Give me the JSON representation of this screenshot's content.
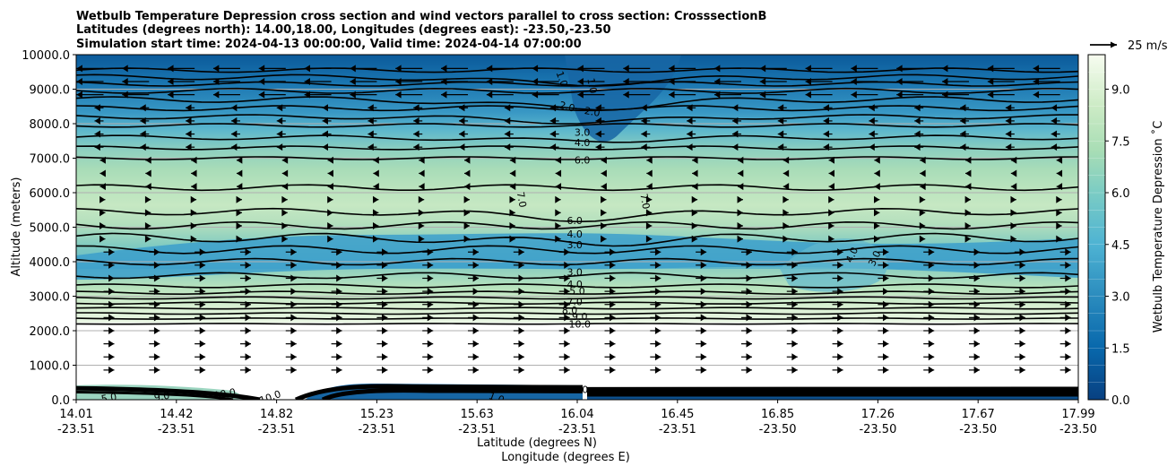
{
  "chart_data": {
    "type": "contour",
    "title_lines": [
      "Wetbulb Temperature Depression cross section and wind vectors parallel to cross section: CrosssectionB",
      "Latitudes (degrees north): 14.00,18.00, Longitudes (degrees east): -23.50,-23.50",
      "Simulation start time: 2024-04-13 00:00:00, Valid time: 2024-04-14 07:00:00"
    ],
    "ylabel": "Altitude (meters)",
    "xlabel_lat": "Latitude (degrees N)",
    "xlabel_lon": "Longitude (degrees E)",
    "ylim": [
      0,
      10000
    ],
    "yticks": [
      "0.0",
      "1000.0",
      "2000.0",
      "3000.0",
      "4000.0",
      "5000.0",
      "6000.0",
      "7000.0",
      "8000.0",
      "9000.0",
      "10000.0"
    ],
    "ytick_values": [
      0,
      1000,
      2000,
      3000,
      4000,
      5000,
      6000,
      7000,
      8000,
      9000,
      10000
    ],
    "xticks_lat": [
      "14.01",
      "14.42",
      "14.82",
      "15.23",
      "15.63",
      "16.04",
      "16.45",
      "16.85",
      "17.26",
      "17.67",
      "17.99"
    ],
    "xticks_lon": [
      "-23.51",
      "-23.51",
      "-23.51",
      "-23.51",
      "-23.51",
      "-23.51",
      "-23.51",
      "-23.50",
      "-23.50",
      "-23.50",
      "-23.50"
    ],
    "xlim_lat": [
      14.01,
      17.99
    ],
    "grid": "horizontal",
    "colorbar": {
      "label": "Wetbulb Temperature Depression ˚C",
      "ticks": [
        "0.0",
        "1.5",
        "3.0",
        "4.5",
        "6.0",
        "7.5",
        "9.0"
      ],
      "tick_values": [
        0,
        1.5,
        3,
        4.5,
        6,
        7.5,
        9
      ],
      "range": [
        0,
        10
      ],
      "colormap": "GnBu_r",
      "levels": 20
    },
    "quiver_key": {
      "label": "25 m/s",
      "speed": 25
    },
    "contour_labels": [
      {
        "text": "1.0",
        "lat": 15.94,
        "alt": 9300,
        "rot": 70
      },
      {
        "text": "1.0",
        "lat": 16.06,
        "alt": 9100,
        "rot": 80
      },
      {
        "text": "2.0",
        "lat": 15.96,
        "alt": 8500,
        "rot": 15
      },
      {
        "text": "2.0",
        "lat": 16.06,
        "alt": 8350,
        "rot": 10
      },
      {
        "text": "3.0",
        "lat": 16.02,
        "alt": 7750,
        "rot": 0
      },
      {
        "text": "4.0",
        "lat": 16.02,
        "alt": 7450,
        "rot": 0
      },
      {
        "text": "6.0",
        "lat": 16.02,
        "alt": 6950,
        "rot": 0
      },
      {
        "text": "7.0",
        "lat": 15.78,
        "alt": 5800,
        "rot": 80
      },
      {
        "text": "7.0",
        "lat": 16.27,
        "alt": 5750,
        "rot": 80
      },
      {
        "text": "6.0",
        "lat": 15.99,
        "alt": 5200,
        "rot": 0
      },
      {
        "text": "4.0",
        "lat": 15.99,
        "alt": 4800,
        "rot": 0
      },
      {
        "text": "3.0",
        "lat": 15.99,
        "alt": 4500,
        "rot": 0
      },
      {
        "text": "4.0",
        "lat": 17.09,
        "alt": 4200,
        "rot": -65
      },
      {
        "text": "3.0",
        "lat": 17.18,
        "alt": 4100,
        "rot": -65
      },
      {
        "text": "3.0",
        "lat": 15.99,
        "alt": 3700,
        "rot": 0
      },
      {
        "text": "4.0",
        "lat": 15.99,
        "alt": 3350,
        "rot": 0
      },
      {
        "text": "5.0",
        "lat": 16.0,
        "alt": 3150,
        "rot": 0
      },
      {
        "text": "7.0",
        "lat": 15.99,
        "alt": 2850,
        "rot": 0
      },
      {
        "text": "8.0",
        "lat": 15.97,
        "alt": 2600,
        "rot": 0
      },
      {
        "text": "9.0",
        "lat": 16.01,
        "alt": 2420,
        "rot": 0
      },
      {
        "text": "10.0",
        "lat": 16.01,
        "alt": 2200,
        "rot": 0
      },
      {
        "text": "10.0",
        "lat": 16.0,
        "alt": 300,
        "rot": 0
      },
      {
        "text": "10.0",
        "lat": 14.6,
        "alt": 180,
        "rot": -10
      },
      {
        "text": "10.0",
        "lat": 14.78,
        "alt": 80,
        "rot": -20
      },
      {
        "text": "9.0",
        "lat": 14.35,
        "alt": 100,
        "rot": -10
      },
      {
        "text": "5.0",
        "lat": 14.14,
        "alt": 60,
        "rot": -10
      },
      {
        "text": "1.0",
        "lat": 15.68,
        "alt": 60,
        "rot": 20
      }
    ]
  }
}
